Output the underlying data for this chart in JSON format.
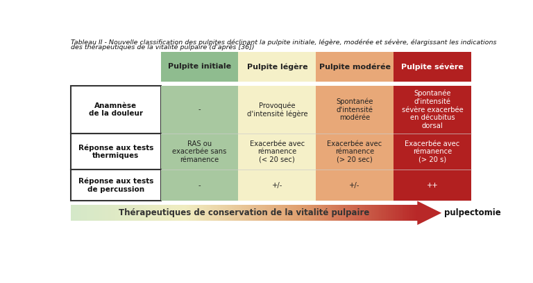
{
  "title_line1": "Tableau II - Nouvelle classification des pulpites déclinant la pulpite initiale, légère, modérée et sévère, élargissant les indications",
  "title_line2": "des thérapeutiques de la vitalité pulpaire (d'après [36])",
  "col_headers": [
    "Pulpite initiale",
    "Pulpite légère",
    "Pulpite modérée",
    "Pulpite sévère"
  ],
  "col_header_colors": [
    "#8fbc8f",
    "#f5f0c8",
    "#e8a878",
    "#b22020"
  ],
  "col_header_text_colors": [
    "#222222",
    "#222222",
    "#222222",
    "#ffffff"
  ],
  "row_labels": [
    "Anamnèse\nde la douleur",
    "Réponse aux tests\nthermiques",
    "Réponse aux tests\nde percussion"
  ],
  "cell_data": [
    [
      "-",
      "Provoquée\nd'intensité légère",
      "Spontanée\nd'intensité\nmodérée",
      "Spontanée\nd'intensité\nsévère exacerbée\nen décubitus\ndorsal"
    ],
    [
      "RAS ou\nexacerbée sans\nrémanence",
      "Exacerbée avec\nrémanence\n(< 20 sec)",
      "Exacerbée avec\nrémanence\n(> 20 sec)",
      "Exacerbée avec\nrémanence\n(> 20 s)"
    ],
    [
      "-",
      "+/-",
      "+/-",
      "++"
    ]
  ],
  "cell_colors": [
    [
      "#a8c8a0",
      "#f5f0c8",
      "#e8a878",
      "#b22020"
    ],
    [
      "#a8c8a0",
      "#f5f0c8",
      "#e8a878",
      "#b22020"
    ],
    [
      "#a8c8a0",
      "#f5f0c8",
      "#e8a878",
      "#b22020"
    ]
  ],
  "cell_text_colors": [
    [
      "#222222",
      "#222222",
      "#222222",
      "#ffffff"
    ],
    [
      "#222222",
      "#222222",
      "#222222",
      "#ffffff"
    ],
    [
      "#222222",
      "#222222",
      "#222222",
      "#ffffff"
    ]
  ],
  "arrow_label": "Thérapeutiques de conservation de la vitalité pulpaire",
  "arrow_end_label": "pulpectomie",
  "background_color": "#ffffff",
  "fig_width": 7.68,
  "fig_height": 4.09
}
